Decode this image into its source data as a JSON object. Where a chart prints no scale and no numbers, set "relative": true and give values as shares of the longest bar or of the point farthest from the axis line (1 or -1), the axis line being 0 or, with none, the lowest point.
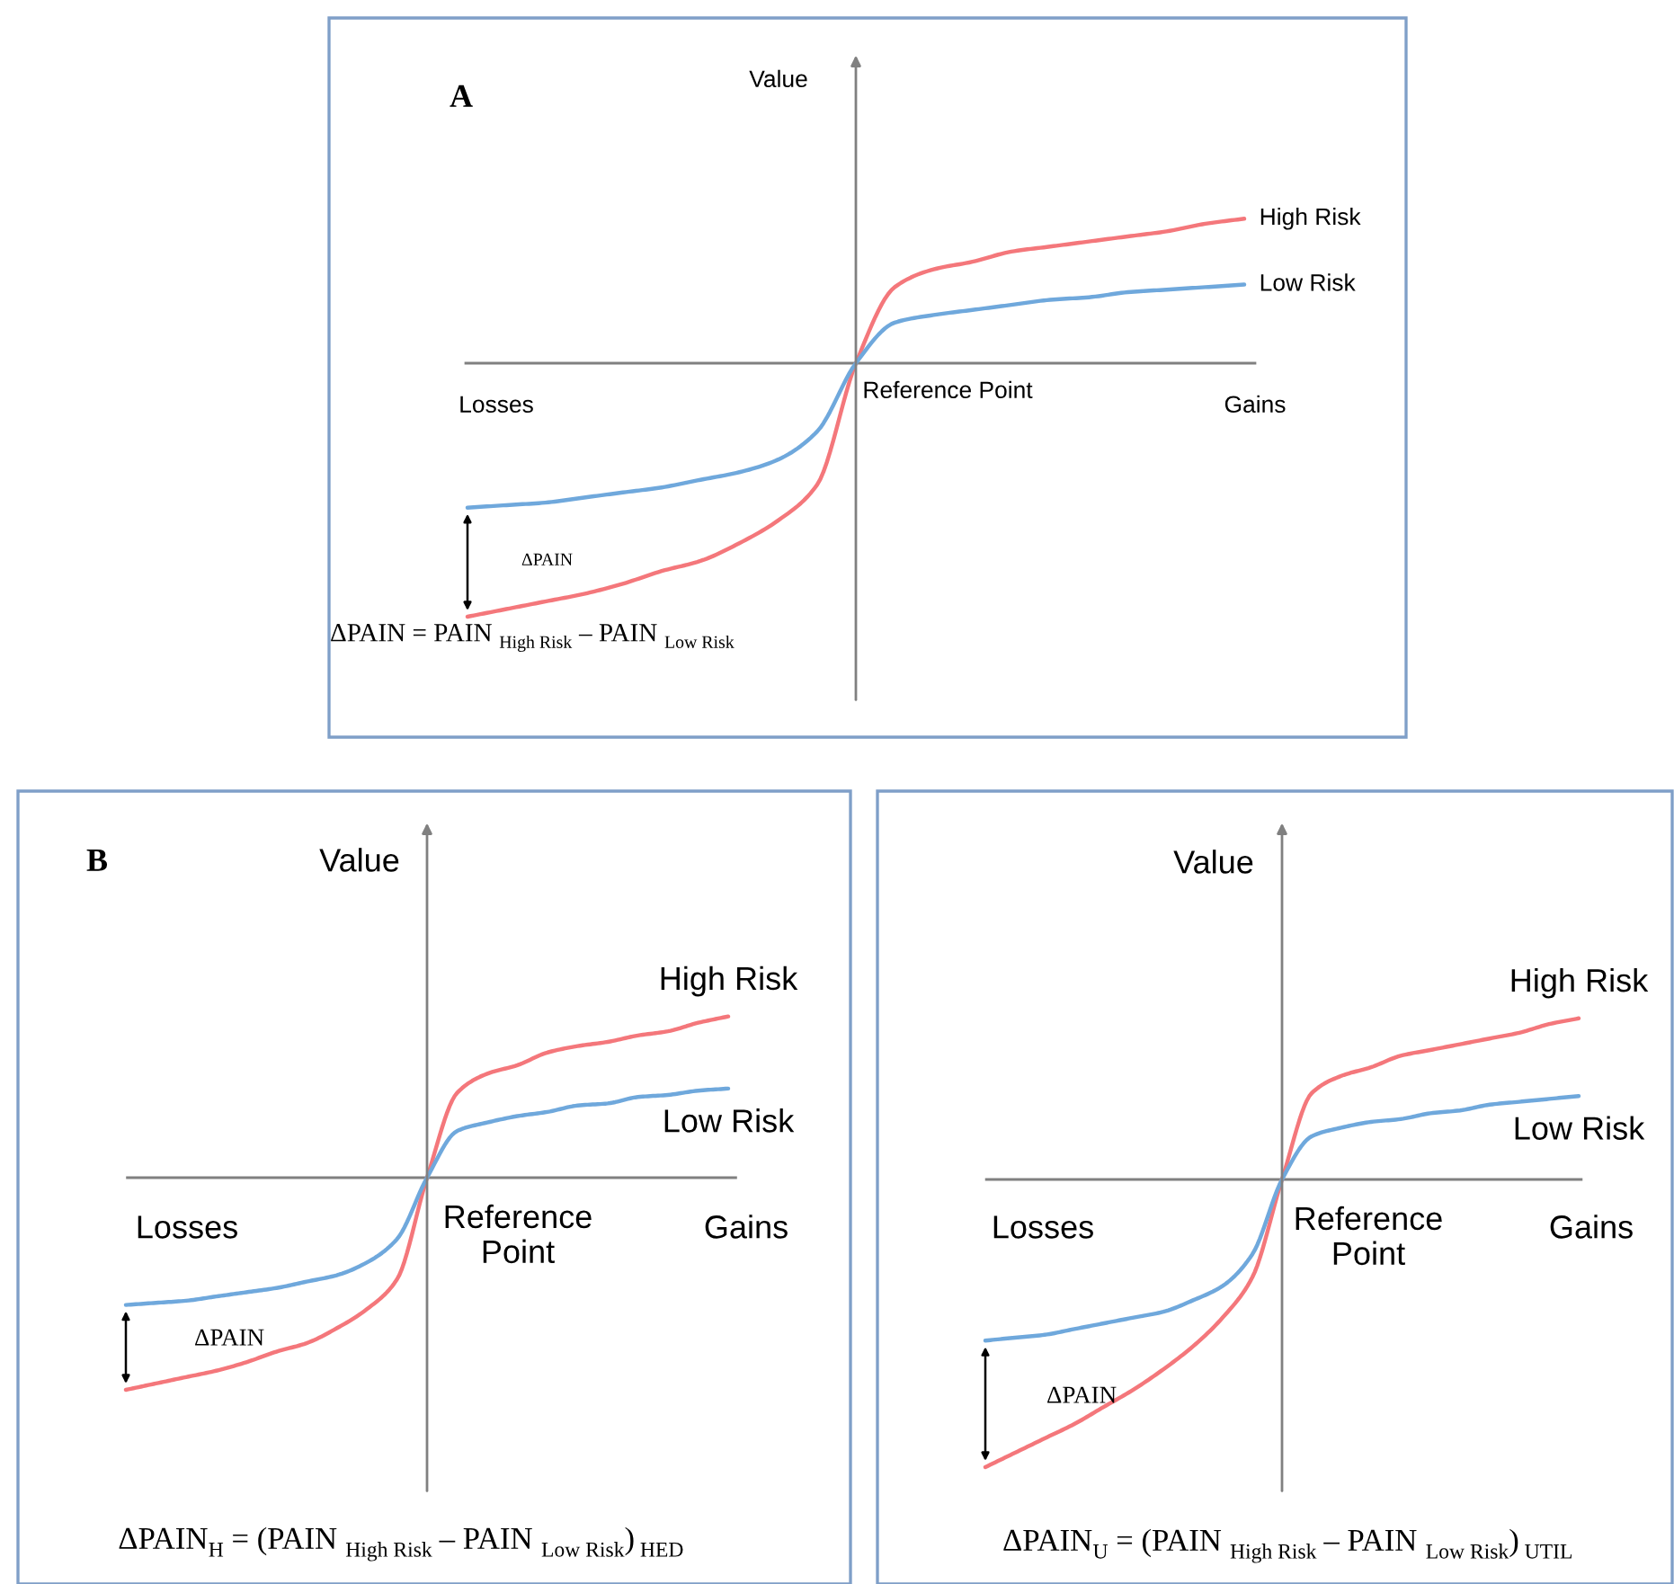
{
  "chart_data": [
    {
      "type": "line",
      "title": "A",
      "ylabel": "Value",
      "relative": true,
      "categories": [
        null,
        null,
        null,
        null,
        null,
        null,
        null,
        null,
        null,
        null,
        null,
        null,
        null,
        null,
        null,
        null,
        null,
        null,
        null,
        null,
        null
      ],
      "series": [
        {
          "name": "High Risk",
          "color": "#f4777b",
          "values": [
            -1,
            -0.97,
            -0.94,
            -0.91,
            -0.87,
            -0.82,
            -0.78,
            -0.71,
            -0.62,
            -0.48,
            0,
            0.3,
            0.37,
            0.4,
            0.44,
            0.46,
            0.48,
            0.5,
            0.52,
            0.55,
            0.57
          ]
        },
        {
          "name": "Low Risk",
          "color": "#6fa8dc",
          "values": [
            -0.57,
            -0.56,
            -0.55,
            -0.53,
            -0.51,
            -0.49,
            -0.46,
            -0.43,
            -0.38,
            -0.27,
            0,
            0.16,
            0.19,
            0.21,
            0.23,
            0.25,
            0.26,
            0.28,
            0.29,
            0.3,
            0.31
          ]
        }
      ],
      "annotations": [
        "Losses",
        "Reference Point",
        "Gains",
        "ΔPAIN",
        "ΔPAIN = PAIN $_{High Risk}$ – PAIN $_{Low Risk}$"
      ]
    },
    {
      "type": "line",
      "title": "B",
      "ylabel": "Value",
      "relative": true,
      "categories": [
        null,
        null,
        null,
        null,
        null,
        null,
        null,
        null,
        null,
        null,
        null,
        null,
        null,
        null,
        null,
        null,
        null,
        null,
        null,
        null,
        null
      ],
      "series": [
        {
          "name": "High Risk",
          "color": "#f4777b",
          "values": [
            -1,
            -0.97,
            -0.94,
            -0.91,
            -0.87,
            -0.82,
            -0.78,
            -0.71,
            -0.62,
            -0.48,
            0,
            0.4,
            0.49,
            0.53,
            0.59,
            0.62,
            0.64,
            0.67,
            0.69,
            0.73,
            0.76
          ]
        },
        {
          "name": "Low Risk",
          "color": "#6fa8dc",
          "values": [
            -0.6,
            -0.59,
            -0.58,
            -0.56,
            -0.54,
            -0.52,
            -0.49,
            -0.46,
            -0.4,
            -0.29,
            0,
            0.22,
            0.26,
            0.29,
            0.31,
            0.34,
            0.35,
            0.38,
            0.39,
            0.41,
            0.42
          ]
        }
      ],
      "annotations": [
        "Losses",
        "Reference\nPoint",
        "Gains",
        "ΔPAIN",
        "ΔPAIN$_{H}$ = (PAIN $_{High Risk}$ – PAIN $_{Low Risk}$)$_{ HED}$"
      ]
    },
    {
      "type": "line",
      "ylabel": "Value",
      "relative": true,
      "categories": [
        null,
        null,
        null,
        null,
        null,
        null,
        null,
        null,
        null,
        null,
        null,
        null,
        null,
        null,
        null,
        null,
        null,
        null,
        null,
        null,
        null
      ],
      "series": [
        {
          "name": "High Risk",
          "color": "#f4777b",
          "values": [
            -1,
            -0.95,
            -0.9,
            -0.85,
            -0.79,
            -0.73,
            -0.66,
            -0.58,
            -0.48,
            -0.34,
            0,
            0.3,
            0.36,
            0.39,
            0.43,
            0.45,
            0.47,
            0.49,
            0.51,
            0.54,
            0.56
          ]
        },
        {
          "name": "Low Risk",
          "color": "#6fa8dc",
          "values": [
            -0.56,
            -0.55,
            -0.54,
            -0.52,
            -0.5,
            -0.48,
            -0.46,
            -0.42,
            -0.37,
            -0.26,
            0,
            0.15,
            0.18,
            0.2,
            0.21,
            0.23,
            0.24,
            0.26,
            0.27,
            0.28,
            0.29
          ]
        }
      ],
      "annotations": [
        "Losses",
        "Reference\nPoint",
        "Gains",
        "ΔPAIN",
        "ΔPAIN$_{U}$ = (PAIN $_{High Risk}$ – PAIN $_{Low Risk}$)$_{ UTIL}$"
      ]
    }
  ]
}
